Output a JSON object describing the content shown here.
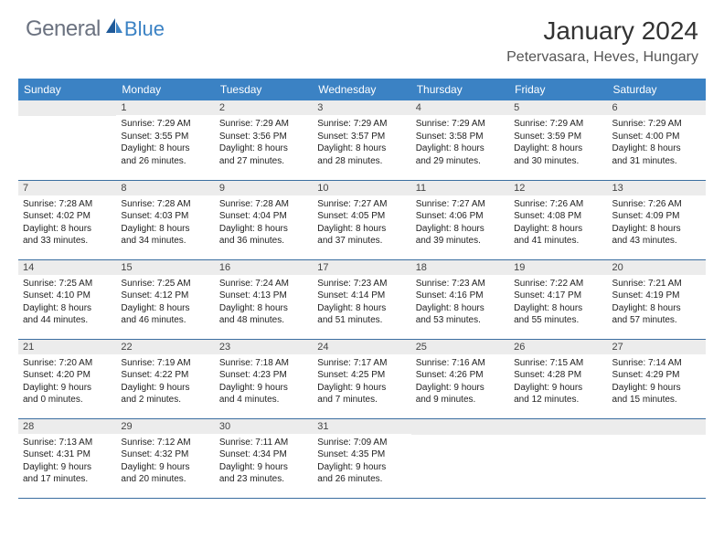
{
  "brand": {
    "part1": "General",
    "part2": "Blue"
  },
  "title": "January 2024",
  "location": "Petervasara, Heves, Hungary",
  "colors": {
    "header_bg": "#3b82c4",
    "header_text": "#ffffff",
    "daynum_bg": "#ececec",
    "border": "#3b6ea0",
    "body_text": "#222222",
    "logo_gray": "#6b7280",
    "logo_blue": "#3b82c4"
  },
  "weekdays": [
    "Sunday",
    "Monday",
    "Tuesday",
    "Wednesday",
    "Thursday",
    "Friday",
    "Saturday"
  ],
  "start_offset": 1,
  "days": [
    {
      "n": "1",
      "sunrise": "Sunrise: 7:29 AM",
      "sunset": "Sunset: 3:55 PM",
      "d1": "Daylight: 8 hours",
      "d2": "and 26 minutes."
    },
    {
      "n": "2",
      "sunrise": "Sunrise: 7:29 AM",
      "sunset": "Sunset: 3:56 PM",
      "d1": "Daylight: 8 hours",
      "d2": "and 27 minutes."
    },
    {
      "n": "3",
      "sunrise": "Sunrise: 7:29 AM",
      "sunset": "Sunset: 3:57 PM",
      "d1": "Daylight: 8 hours",
      "d2": "and 28 minutes."
    },
    {
      "n": "4",
      "sunrise": "Sunrise: 7:29 AM",
      "sunset": "Sunset: 3:58 PM",
      "d1": "Daylight: 8 hours",
      "d2": "and 29 minutes."
    },
    {
      "n": "5",
      "sunrise": "Sunrise: 7:29 AM",
      "sunset": "Sunset: 3:59 PM",
      "d1": "Daylight: 8 hours",
      "d2": "and 30 minutes."
    },
    {
      "n": "6",
      "sunrise": "Sunrise: 7:29 AM",
      "sunset": "Sunset: 4:00 PM",
      "d1": "Daylight: 8 hours",
      "d2": "and 31 minutes."
    },
    {
      "n": "7",
      "sunrise": "Sunrise: 7:28 AM",
      "sunset": "Sunset: 4:02 PM",
      "d1": "Daylight: 8 hours",
      "d2": "and 33 minutes."
    },
    {
      "n": "8",
      "sunrise": "Sunrise: 7:28 AM",
      "sunset": "Sunset: 4:03 PM",
      "d1": "Daylight: 8 hours",
      "d2": "and 34 minutes."
    },
    {
      "n": "9",
      "sunrise": "Sunrise: 7:28 AM",
      "sunset": "Sunset: 4:04 PM",
      "d1": "Daylight: 8 hours",
      "d2": "and 36 minutes."
    },
    {
      "n": "10",
      "sunrise": "Sunrise: 7:27 AM",
      "sunset": "Sunset: 4:05 PM",
      "d1": "Daylight: 8 hours",
      "d2": "and 37 minutes."
    },
    {
      "n": "11",
      "sunrise": "Sunrise: 7:27 AM",
      "sunset": "Sunset: 4:06 PM",
      "d1": "Daylight: 8 hours",
      "d2": "and 39 minutes."
    },
    {
      "n": "12",
      "sunrise": "Sunrise: 7:26 AM",
      "sunset": "Sunset: 4:08 PM",
      "d1": "Daylight: 8 hours",
      "d2": "and 41 minutes."
    },
    {
      "n": "13",
      "sunrise": "Sunrise: 7:26 AM",
      "sunset": "Sunset: 4:09 PM",
      "d1": "Daylight: 8 hours",
      "d2": "and 43 minutes."
    },
    {
      "n": "14",
      "sunrise": "Sunrise: 7:25 AM",
      "sunset": "Sunset: 4:10 PM",
      "d1": "Daylight: 8 hours",
      "d2": "and 44 minutes."
    },
    {
      "n": "15",
      "sunrise": "Sunrise: 7:25 AM",
      "sunset": "Sunset: 4:12 PM",
      "d1": "Daylight: 8 hours",
      "d2": "and 46 minutes."
    },
    {
      "n": "16",
      "sunrise": "Sunrise: 7:24 AM",
      "sunset": "Sunset: 4:13 PM",
      "d1": "Daylight: 8 hours",
      "d2": "and 48 minutes."
    },
    {
      "n": "17",
      "sunrise": "Sunrise: 7:23 AM",
      "sunset": "Sunset: 4:14 PM",
      "d1": "Daylight: 8 hours",
      "d2": "and 51 minutes."
    },
    {
      "n": "18",
      "sunrise": "Sunrise: 7:23 AM",
      "sunset": "Sunset: 4:16 PM",
      "d1": "Daylight: 8 hours",
      "d2": "and 53 minutes."
    },
    {
      "n": "19",
      "sunrise": "Sunrise: 7:22 AM",
      "sunset": "Sunset: 4:17 PM",
      "d1": "Daylight: 8 hours",
      "d2": "and 55 minutes."
    },
    {
      "n": "20",
      "sunrise": "Sunrise: 7:21 AM",
      "sunset": "Sunset: 4:19 PM",
      "d1": "Daylight: 8 hours",
      "d2": "and 57 minutes."
    },
    {
      "n": "21",
      "sunrise": "Sunrise: 7:20 AM",
      "sunset": "Sunset: 4:20 PM",
      "d1": "Daylight: 9 hours",
      "d2": "and 0 minutes."
    },
    {
      "n": "22",
      "sunrise": "Sunrise: 7:19 AM",
      "sunset": "Sunset: 4:22 PM",
      "d1": "Daylight: 9 hours",
      "d2": "and 2 minutes."
    },
    {
      "n": "23",
      "sunrise": "Sunrise: 7:18 AM",
      "sunset": "Sunset: 4:23 PM",
      "d1": "Daylight: 9 hours",
      "d2": "and 4 minutes."
    },
    {
      "n": "24",
      "sunrise": "Sunrise: 7:17 AM",
      "sunset": "Sunset: 4:25 PM",
      "d1": "Daylight: 9 hours",
      "d2": "and 7 minutes."
    },
    {
      "n": "25",
      "sunrise": "Sunrise: 7:16 AM",
      "sunset": "Sunset: 4:26 PM",
      "d1": "Daylight: 9 hours",
      "d2": "and 9 minutes."
    },
    {
      "n": "26",
      "sunrise": "Sunrise: 7:15 AM",
      "sunset": "Sunset: 4:28 PM",
      "d1": "Daylight: 9 hours",
      "d2": "and 12 minutes."
    },
    {
      "n": "27",
      "sunrise": "Sunrise: 7:14 AM",
      "sunset": "Sunset: 4:29 PM",
      "d1": "Daylight: 9 hours",
      "d2": "and 15 minutes."
    },
    {
      "n": "28",
      "sunrise": "Sunrise: 7:13 AM",
      "sunset": "Sunset: 4:31 PM",
      "d1": "Daylight: 9 hours",
      "d2": "and 17 minutes."
    },
    {
      "n": "29",
      "sunrise": "Sunrise: 7:12 AM",
      "sunset": "Sunset: 4:32 PM",
      "d1": "Daylight: 9 hours",
      "d2": "and 20 minutes."
    },
    {
      "n": "30",
      "sunrise": "Sunrise: 7:11 AM",
      "sunset": "Sunset: 4:34 PM",
      "d1": "Daylight: 9 hours",
      "d2": "and 23 minutes."
    },
    {
      "n": "31",
      "sunrise": "Sunrise: 7:09 AM",
      "sunset": "Sunset: 4:35 PM",
      "d1": "Daylight: 9 hours",
      "d2": "and 26 minutes."
    }
  ]
}
